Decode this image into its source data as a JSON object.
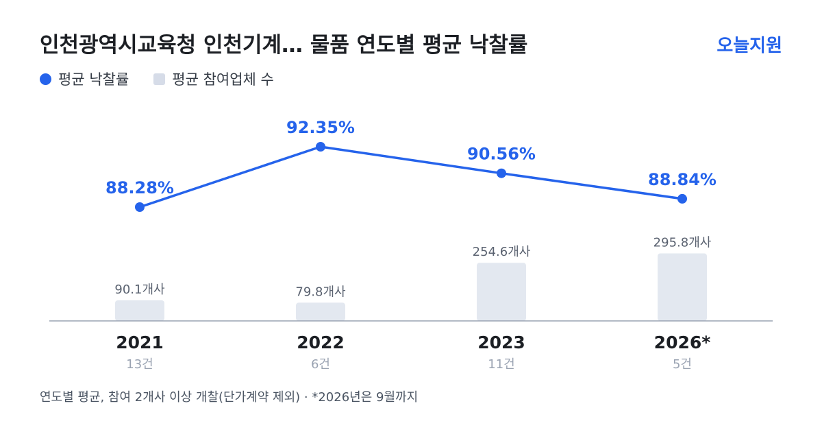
{
  "header": {
    "title": "인천광역시교육청 인천기계… 물품 연도별 평균 낙찰률",
    "brand": "오늘지원"
  },
  "legend": {
    "rate_label": "평균 낙찰률",
    "participants_label": "평균 참여업체 수"
  },
  "colors": {
    "line": "#2563eb",
    "bar": "#e3e8f0",
    "axis": "#9aa3b2"
  },
  "chart_data": {
    "type": "bar+line",
    "categories": [
      "2021",
      "2022",
      "2023",
      "2026*"
    ],
    "sublabels": [
      "13건",
      "6건",
      "11건",
      "5건"
    ],
    "series": [
      {
        "name": "평균 낙찰률",
        "kind": "line",
        "values": [
          88.28,
          92.35,
          90.56,
          88.84
        ],
        "labels": [
          "88.28%",
          "92.35%",
          "90.56%",
          "88.84%"
        ]
      },
      {
        "name": "평균 참여업체 수",
        "kind": "bar",
        "values": [
          90.1,
          79.8,
          254.6,
          295.8
        ],
        "labels": [
          "90.1개사",
          "79.8개사",
          "254.6개사",
          "295.8개사"
        ]
      }
    ],
    "legend_position": "top-left",
    "grid": false
  },
  "footnote": "연도별 평균, 참여 2개사 이상 개찰(단가계약 제외) · *2026년은 9월까지"
}
